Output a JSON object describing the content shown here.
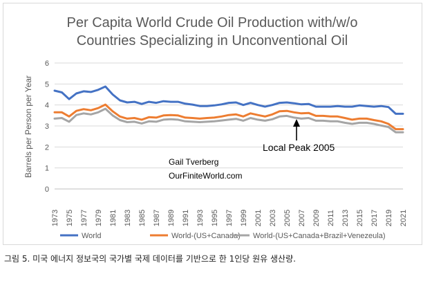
{
  "caption": "그림 5. 미국 에너지 정보국의 국가별 국제 데이터를 기반으로 한 1인당 원유 생산량.",
  "chart_data": {
    "type": "line",
    "title_lines": [
      "Per Capita World Crude Oil Production with/w/o",
      "Countries Specializing in Unconventional Oil"
    ],
    "ylabel": "Barrels per Person per Year",
    "xlabel": "",
    "ylim": [
      0,
      6
    ],
    "yticks": [
      "0",
      "1",
      "2",
      "3",
      "4",
      "5",
      "6"
    ],
    "x_tick_labels": [
      "1973",
      "1975",
      "1977",
      "1979",
      "1981",
      "1983",
      "1985",
      "1987",
      "1989",
      "1991",
      "1993",
      "1995",
      "1997",
      "1999",
      "2001",
      "2003",
      "2005",
      "2007",
      "2009",
      "2011",
      "2013",
      "2015",
      "2017",
      "2019",
      "2021"
    ],
    "grid": "horizontal",
    "legend_position": "bottom",
    "x": [
      1973,
      1974,
      1975,
      1976,
      1977,
      1978,
      1979,
      1980,
      1981,
      1982,
      1983,
      1984,
      1985,
      1986,
      1987,
      1988,
      1989,
      1990,
      1991,
      1992,
      1993,
      1994,
      1995,
      1996,
      1997,
      1998,
      1999,
      2000,
      2001,
      2002,
      2003,
      2004,
      2005,
      2006,
      2007,
      2008,
      2009,
      2010,
      2011,
      2012,
      2013,
      2014,
      2015,
      2016,
      2017,
      2018,
      2019,
      2020,
      2021
    ],
    "series": [
      {
        "name": "World",
        "color": "#4472C4",
        "values": [
          4.68,
          4.6,
          4.28,
          4.55,
          4.65,
          4.62,
          4.72,
          4.88,
          4.5,
          4.22,
          4.12,
          4.15,
          4.05,
          4.15,
          4.1,
          4.18,
          4.15,
          4.15,
          4.06,
          4.02,
          3.95,
          3.95,
          3.98,
          4.03,
          4.1,
          4.12,
          4.0,
          4.1,
          4.0,
          3.92,
          4.0,
          4.1,
          4.12,
          4.08,
          4.03,
          4.05,
          3.92,
          3.92,
          3.92,
          3.95,
          3.92,
          3.92,
          3.98,
          3.95,
          3.92,
          3.95,
          3.9,
          3.58,
          3.58
        ]
      },
      {
        "name": "World-(US+Canada)",
        "color": "#ED7D31",
        "values": [
          3.65,
          3.65,
          3.45,
          3.72,
          3.8,
          3.75,
          3.85,
          4.02,
          3.7,
          3.45,
          3.35,
          3.38,
          3.3,
          3.42,
          3.4,
          3.5,
          3.52,
          3.5,
          3.4,
          3.38,
          3.35,
          3.38,
          3.4,
          3.45,
          3.52,
          3.55,
          3.45,
          3.6,
          3.52,
          3.45,
          3.55,
          3.7,
          3.72,
          3.65,
          3.6,
          3.62,
          3.48,
          3.48,
          3.45,
          3.45,
          3.38,
          3.3,
          3.35,
          3.35,
          3.28,
          3.22,
          3.1,
          2.85,
          2.85
        ]
      },
      {
        "name": "World-(US+Canada+Brazil+Venezeula)",
        "color": "#A5A5A5",
        "values": [
          3.35,
          3.38,
          3.2,
          3.52,
          3.6,
          3.55,
          3.65,
          3.82,
          3.5,
          3.28,
          3.18,
          3.2,
          3.12,
          3.22,
          3.2,
          3.3,
          3.32,
          3.3,
          3.22,
          3.2,
          3.18,
          3.2,
          3.22,
          3.26,
          3.3,
          3.34,
          3.25,
          3.38,
          3.3,
          3.25,
          3.32,
          3.45,
          3.48,
          3.4,
          3.35,
          3.38,
          3.25,
          3.25,
          3.22,
          3.22,
          3.15,
          3.1,
          3.15,
          3.15,
          3.1,
          3.02,
          2.95,
          2.7,
          2.7
        ]
      }
    ],
    "annotations": [
      {
        "text": "Gail Tverberg"
      },
      {
        "text": "OurFiniteWorld.com"
      },
      {
        "text": "Local Peak 2005"
      }
    ]
  }
}
